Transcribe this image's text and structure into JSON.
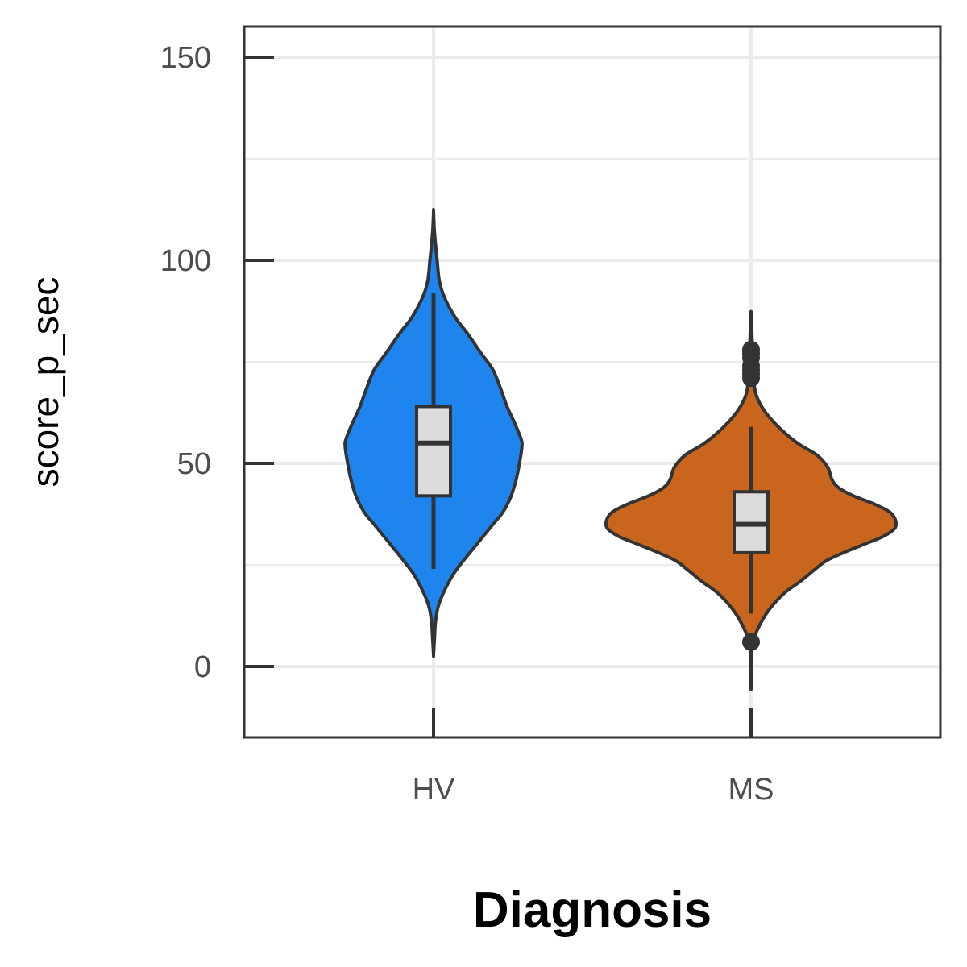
{
  "chart_data": {
    "type": "violin",
    "title": "",
    "xlabel": "Diagnosis",
    "ylabel": "score_p_sec",
    "ylim": [
      -18,
      158
    ],
    "y_ticks": [
      0,
      50,
      100,
      150
    ],
    "y_minor_grid": [
      25,
      75,
      125
    ],
    "grid": true,
    "legend": "none",
    "categories": [
      "HV",
      "MS"
    ],
    "groups": [
      {
        "name": "HV",
        "color": "#1e85ee",
        "box": {
          "min": 24,
          "q1": 42,
          "median": 55,
          "q3": 64,
          "max": 92
        },
        "outliers": [],
        "density": [
          [
            112,
            0.0
          ],
          [
            108,
            0.004
          ],
          [
            104,
            0.012
          ],
          [
            100,
            0.022
          ],
          [
            95,
            0.035
          ],
          [
            91,
            0.065
          ],
          [
            86,
            0.13
          ],
          [
            82,
            0.205
          ],
          [
            77,
            0.29
          ],
          [
            73,
            0.36
          ],
          [
            68,
            0.41
          ],
          [
            64,
            0.445
          ],
          [
            60,
            0.49
          ],
          [
            56,
            0.53
          ],
          [
            54,
            0.535
          ],
          [
            50,
            0.52
          ],
          [
            46,
            0.5
          ],
          [
            42,
            0.47
          ],
          [
            38,
            0.42
          ],
          [
            35,
            0.36
          ],
          [
            31,
            0.28
          ],
          [
            27,
            0.2
          ],
          [
            23,
            0.125
          ],
          [
            19,
            0.07
          ],
          [
            15,
            0.03
          ],
          [
            11,
            0.012
          ],
          [
            7,
            0.006
          ],
          [
            3,
            0.0
          ]
        ]
      },
      {
        "name": "MS",
        "color": "#ca651e",
        "box": {
          "min": 13,
          "q1": 28,
          "median": 35,
          "q3": 43,
          "max": 59
        },
        "outliers": [
          78,
          77,
          76,
          74,
          73,
          72,
          71,
          6
        ],
        "density": [
          [
            87,
            0.0
          ],
          [
            84,
            0.004
          ],
          [
            80,
            0.007
          ],
          [
            75,
            0.011
          ],
          [
            71,
            0.016
          ],
          [
            67,
            0.03
          ],
          [
            63,
            0.08
          ],
          [
            59,
            0.165
          ],
          [
            55,
            0.28
          ],
          [
            52,
            0.4
          ],
          [
            49,
            0.465
          ],
          [
            46,
            0.49
          ],
          [
            44,
            0.53
          ],
          [
            42,
            0.62
          ],
          [
            40,
            0.745
          ],
          [
            38,
            0.84
          ],
          [
            36,
            0.875
          ],
          [
            34,
            0.87
          ],
          [
            32,
            0.8
          ],
          [
            30,
            0.68
          ],
          [
            28,
            0.56
          ],
          [
            26,
            0.455
          ],
          [
            24,
            0.39
          ],
          [
            21,
            0.3
          ],
          [
            18,
            0.2
          ],
          [
            14,
            0.11
          ],
          [
            10,
            0.05
          ],
          [
            7,
            0.02
          ],
          [
            4,
            0.006
          ],
          [
            0,
            0.002
          ],
          [
            -5,
            0.0
          ]
        ]
      }
    ]
  }
}
